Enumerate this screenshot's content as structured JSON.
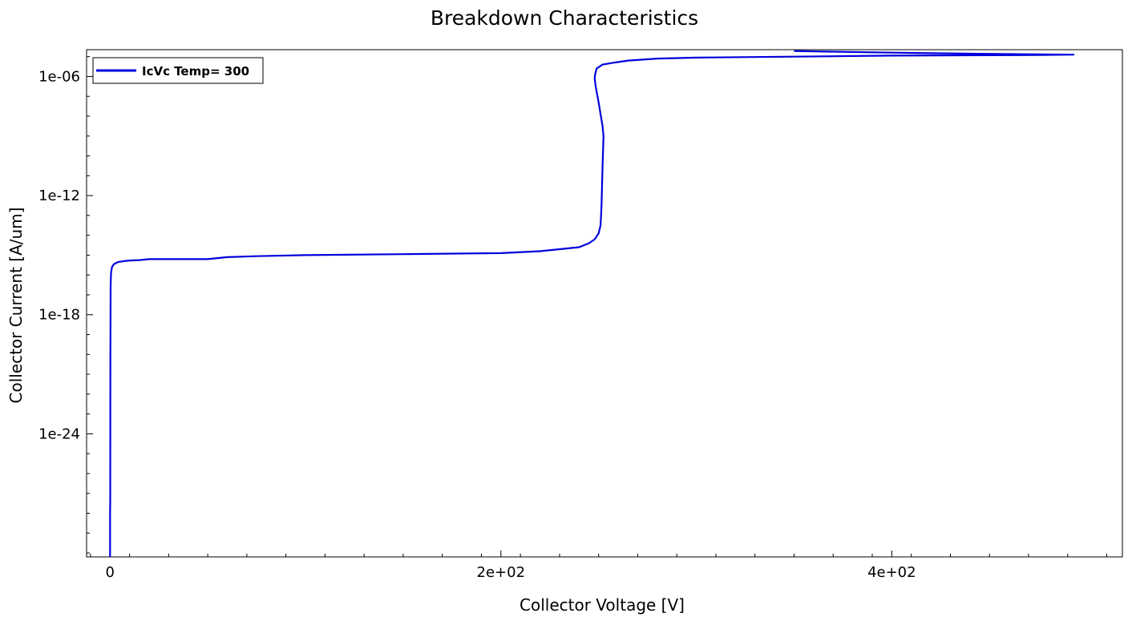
{
  "chart_data": {
    "type": "line",
    "title": "Breakdown Characteristics",
    "xlabel": "Collector Voltage [V]",
    "ylabel": "Collector Current [A/um]",
    "xscale": "linear",
    "yscale": "log",
    "xlim": [
      -12,
      518
    ],
    "ylim_exp": [
      -30.2,
      -4.65
    ],
    "x_ticks": [
      {
        "value": 0,
        "label": "0"
      },
      {
        "value": 200,
        "label": "2e+02"
      },
      {
        "value": 400,
        "label": "4e+02"
      }
    ],
    "y_ticks": [
      {
        "exp": -24,
        "label": "1e-24"
      },
      {
        "exp": -18,
        "label": "1e-18"
      },
      {
        "exp": -12,
        "label": "1e-12"
      },
      {
        "exp": -6,
        "label": "1e-06"
      }
    ],
    "grid": false,
    "legend": {
      "position": "top-left",
      "entries": [
        "IcVc Temp= 300"
      ]
    },
    "color": "#0000dd",
    "series": [
      {
        "name": "IcVc Temp= 300",
        "x": [
          0,
          0,
          0.1,
          0.2,
          0.3,
          0.5,
          1,
          2,
          4,
          7,
          10,
          15,
          20,
          25,
          50,
          60,
          75,
          100,
          150,
          180,
          200,
          220,
          240,
          245,
          248,
          250,
          251,
          251.5,
          252,
          252.5,
          252,
          251,
          250,
          248.5,
          248,
          248.2,
          249,
          252,
          258,
          265,
          280,
          300,
          350,
          400,
          450,
          475,
          493,
          440,
          400,
          370,
          350
        ],
        "y_exp": [
          -30.2,
          -28,
          -27.5,
          -20,
          -16.5,
          -15.9,
          -15.6,
          -15.45,
          -15.35,
          -15.3,
          -15.27,
          -15.25,
          -15.2,
          -15.2,
          -15.2,
          -15.1,
          -15.05,
          -15.0,
          -14.95,
          -14.92,
          -14.9,
          -14.8,
          -14.6,
          -14.4,
          -14.2,
          -13.9,
          -13.5,
          -12.5,
          -10.5,
          -9.0,
          -8.5,
          -7.9,
          -7.3,
          -6.5,
          -6.1,
          -5.9,
          -5.6,
          -5.4,
          -5.3,
          -5.2,
          -5.1,
          -5.05,
          -5.0,
          -4.95,
          -4.93,
          -4.92,
          -4.9,
          -4.85,
          -4.8,
          -4.75,
          -4.72
        ]
      }
    ]
  }
}
